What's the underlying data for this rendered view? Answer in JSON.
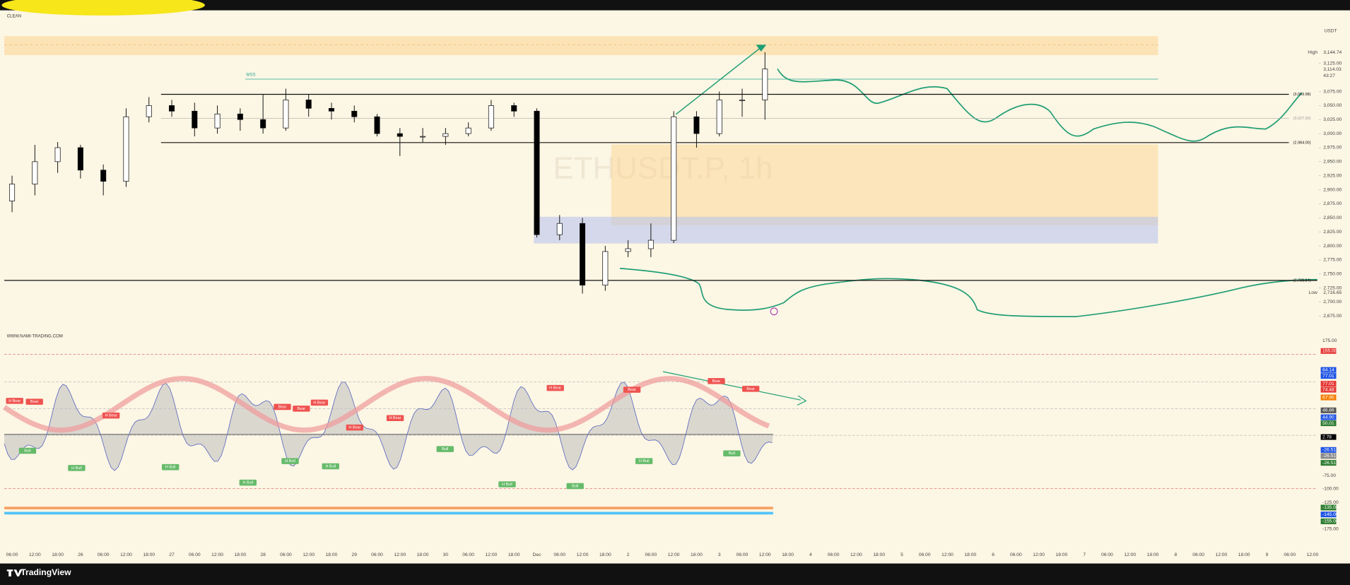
{
  "header": {
    "title": "CLEAN",
    "indicator_title": "WWW.NAMI-TRADING.COM",
    "brand": "TradingView"
  },
  "chart_data": {
    "type": "candlestick",
    "title": "ETHUSDT.P, 1h",
    "categories": [
      "06:00",
      "12:00",
      "18:00",
      "26",
      "06:00",
      "12:00",
      "18:00",
      "27",
      "06:00",
      "12:00",
      "18:00",
      "28",
      "06:00",
      "12:00",
      "18:00",
      "29",
      "06:00",
      "12:00",
      "18:00",
      "30",
      "06:00",
      "12:00",
      "18:00",
      "Dec",
      "06:00",
      "12:00",
      "18:00",
      "2",
      "06:00",
      "12:00",
      "18:00",
      "3",
      "06:00",
      "12:00",
      "18:00",
      "4",
      "06:00",
      "12:00",
      "18:00",
      "5",
      "06:00",
      "12:00",
      "18:00",
      "6",
      "06:00",
      "12:00",
      "18:00",
      "7",
      "06:00",
      "12:00",
      "18:00",
      "8",
      "06:00",
      "12:00",
      "18:00",
      "9",
      "06:00",
      "12:00"
    ],
    "open": [
      2880,
      2910,
      2950,
      2975,
      2935,
      2915,
      3030,
      3050,
      3040,
      3010,
      3035,
      3025,
      3010,
      3060,
      3045,
      3040,
      3030,
      3000,
      2995,
      2995,
      3000,
      3010,
      3050,
      3040,
      2820,
      2840,
      2730,
      2790,
      2795,
      2810,
      3030,
      3000,
      3060,
      3060,
      null,
      null,
      null,
      null,
      null,
      null,
      null,
      null,
      null,
      null,
      null,
      null,
      null,
      null,
      null,
      null,
      null,
      null,
      null,
      null,
      null,
      null,
      null,
      null
    ],
    "high": [
      2925,
      2980,
      2985,
      2980,
      2945,
      3045,
      3065,
      3060,
      3055,
      3050,
      3045,
      3070,
      3080,
      3070,
      3055,
      3050,
      3035,
      3010,
      3010,
      3010,
      3020,
      3060,
      3055,
      3045,
      2855,
      2850,
      2800,
      2810,
      2840,
      3040,
      3040,
      3075,
      3080,
      3145,
      null,
      null,
      null,
      null,
      null,
      null,
      null,
      null,
      null,
      null,
      null,
      null,
      null,
      null,
      null,
      null,
      null,
      null,
      null,
      null,
      null,
      null,
      null,
      null
    ],
    "low": [
      2860,
      2890,
      2930,
      2920,
      2890,
      2905,
      3020,
      3030,
      2995,
      3000,
      3005,
      3000,
      3005,
      3030,
      3025,
      3020,
      2995,
      2960,
      2985,
      2980,
      2995,
      3005,
      3030,
      2815,
      2810,
      2715,
      2720,
      2780,
      2780,
      2805,
      2975,
      2995,
      3030,
      3025,
      null,
      null,
      null,
      null,
      null,
      null,
      null,
      null,
      null,
      null,
      null,
      null,
      null,
      null,
      null,
      null,
      null,
      null,
      null,
      null,
      null,
      null,
      null,
      null
    ],
    "close": [
      2910,
      2950,
      2975,
      2935,
      2915,
      3030,
      3050,
      3040,
      3010,
      3035,
      3025,
      3010,
      3060,
      3045,
      3040,
      3030,
      3000,
      2995,
      2995,
      3000,
      3010,
      3050,
      3040,
      2820,
      2840,
      2730,
      2790,
      2795,
      2810,
      3030,
      3000,
      3060,
      3060,
      3115,
      null,
      null,
      null,
      null,
      null,
      null,
      null,
      null,
      null,
      null,
      null,
      null,
      null,
      null,
      null,
      null,
      null,
      null,
      null,
      null,
      null,
      null,
      null,
      null
    ],
    "up_color": "#ffffff",
    "down_color": "#000000",
    "ylim": [
      2671,
      3192
    ],
    "yticks": [
      {
        "value": 2675,
        "label": "2,675.00"
      },
      {
        "value": 2700,
        "label": "2,700.00"
      },
      {
        "value": 2725,
        "label": "2,725.00"
      },
      {
        "value": 2750,
        "label": "2,750.00"
      },
      {
        "value": 2775,
        "label": "2,775.00"
      },
      {
        "value": 2800,
        "label": "2,800.00"
      },
      {
        "value": 2825,
        "label": "2,825.00"
      },
      {
        "value": 2850,
        "label": "2,850.00"
      },
      {
        "value": 2875,
        "label": "2,875.00"
      },
      {
        "value": 2900,
        "label": "2,900.00"
      },
      {
        "value": 2925,
        "label": "2,925.00"
      },
      {
        "value": 2950,
        "label": "2,950.00"
      },
      {
        "value": 2975,
        "label": "2,975.00"
      },
      {
        "value": 3000,
        "label": "3,000.00"
      },
      {
        "value": 3025,
        "label": "3,025.00"
      },
      {
        "value": 3050,
        "label": "3,050.00"
      },
      {
        "value": 3075,
        "label": "3,075.00"
      },
      {
        "value": 3125,
        "label": "3,125.00"
      }
    ],
    "currency": "USDT",
    "high_marker": {
      "name": "High",
      "value": 3144.74,
      "label": "3,144.74"
    },
    "low_marker": {
      "name": "Low",
      "value": 2716.65,
      "label": "2,716.65"
    },
    "last_price": {
      "value": 3114.03,
      "label": "3,114.03",
      "countdown": "43:27"
    },
    "levels": [
      {
        "value": 3069.98,
        "label": "(3,069.98)"
      },
      {
        "value": 3027,
        "label": "(3,027.00)"
      },
      {
        "value": 2984,
        "label": "(2,984.00)"
      },
      {
        "value": 2738.54,
        "label": "(2,738.54)"
      }
    ],
    "annotation": "MSS"
  },
  "indicator": {
    "axis_labels": [
      "175.00",
      "155.00",
      "84.14",
      "77.01",
      "77.01",
      "74.48",
      "67.95",
      "46.86",
      "44.90",
      "50.01",
      "2.78",
      "-26.51",
      "-26.51",
      "-26.51",
      "-75.00",
      "-100.00",
      "-125.00",
      "-135.00",
      "-145.00",
      "-155.00",
      "-175.00"
    ],
    "axis_colors": [
      "transparent",
      "#e53935",
      "#1e53e5",
      "#1e53e5",
      "#e53935",
      "#e53935",
      "#f57c00",
      "#555555",
      "#1e53e5",
      "#2e7d32",
      "#000000",
      "#1e53e5",
      "#888888",
      "#2e7d32",
      "transparent",
      "transparent",
      "transparent",
      "#2e7d32",
      "#1e53e5",
      "#2e7d32",
      "transparent"
    ],
    "bear_labels": [
      "H Bear",
      "Bear",
      "H Bear",
      "Bear",
      "Bear",
      "H Bear",
      "H Bear",
      "H Bear",
      "H Bear",
      "Bear",
      "Bear",
      "Bear"
    ],
    "bull_labels": [
      "Bull",
      "H Bull",
      "H Bull",
      "H Bull",
      "H Bull",
      "H Bull",
      "Bull",
      "H Bull",
      "Bull",
      "H Bull",
      "Bull"
    ]
  }
}
